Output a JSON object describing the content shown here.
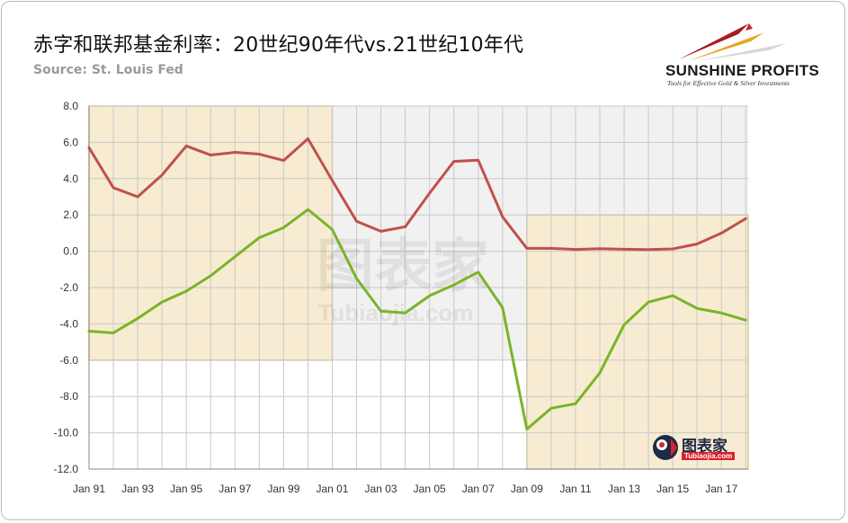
{
  "header": {
    "title": "赤字和联邦基金利率：20世纪90年代vs.21世纪10年代",
    "source": "Source: St. Louis Fed"
  },
  "logo": {
    "name": "SUNSHINE PROFITS",
    "tagline": "Tools for Effective Gold & Silver Investments"
  },
  "watermarks": [
    {
      "text": "图表家",
      "subtext": "Tubiaojia.com"
    }
  ],
  "colors": {
    "background_plot": "#f1f1f1",
    "highlight_fill": "#f7ecd2",
    "highlight_border": "#dcc798",
    "series_red": "#c0504d",
    "series_green": "#7ab427"
  },
  "chart_data": {
    "type": "line",
    "x": [
      1991,
      1992,
      1993,
      1994,
      1995,
      1996,
      1997,
      1998,
      1999,
      2000,
      2001,
      2002,
      2003,
      2004,
      2005,
      2006,
      2007,
      2008,
      2009,
      2010,
      2011,
      2012,
      2013,
      2014,
      2015,
      2016,
      2017,
      2018
    ],
    "x_tick_labels": [
      "Jan 91",
      "Jan 93",
      "Jan 95",
      "Jan 97",
      "Jan 99",
      "Jan 01",
      "Jan 03",
      "Jan 05",
      "Jan 07",
      "Jan 09",
      "Jan 11",
      "Jan 13",
      "Jan 15",
      "Jan 17"
    ],
    "x_tick_years": [
      1991,
      1993,
      1995,
      1997,
      1999,
      2001,
      2003,
      2005,
      2007,
      2009,
      2011,
      2013,
      2015,
      2017
    ],
    "y_ticks": [
      "8.0",
      "6.0",
      "4.0",
      "2.0",
      "0.0",
      "-2.0",
      "-4.0",
      "-6.0",
      "-8.0",
      "-10.0",
      "-12.0"
    ],
    "ylim": [
      -12,
      8
    ],
    "xlim": [
      1991,
      2018.1
    ],
    "grid": true,
    "legend": "none",
    "series": [
      {
        "values": [
          5.7,
          3.5,
          3.0,
          4.2,
          5.8,
          5.3,
          5.45,
          5.35,
          5.0,
          6.2,
          3.9,
          1.65,
          1.1,
          1.35,
          3.2,
          4.95,
          5.02,
          1.9,
          0.16,
          0.16,
          0.1,
          0.14,
          0.11,
          0.09,
          0.13,
          0.4,
          1.0,
          1.8
        ]
      },
      {
        "values": [
          -4.4,
          -4.5,
          -3.7,
          -2.8,
          -2.2,
          -1.35,
          -0.3,
          0.75,
          1.3,
          2.3,
          1.2,
          -1.5,
          -3.3,
          -3.4,
          -2.45,
          -1.85,
          -1.15,
          -3.1,
          -9.8,
          -8.65,
          -8.4,
          -6.7,
          -4.05,
          -2.8,
          -2.45,
          -3.15,
          -3.4,
          -3.8
        ]
      }
    ],
    "highlights": [
      {
        "x_range": [
          1991,
          2001
        ],
        "y_range": [
          -6,
          8
        ]
      },
      {
        "x_range": [
          2009,
          2018.1
        ],
        "y_range": [
          -12,
          2
        ]
      }
    ]
  }
}
